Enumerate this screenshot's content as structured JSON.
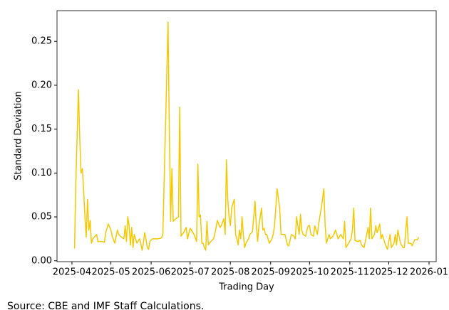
{
  "chart_data": {
    "type": "line",
    "x_label": "Trading Day",
    "y_label": "Standard Deviation",
    "source": "Source: CBE and IMF Staff Calculations.",
    "xlim": [
      78.5,
      370.5
    ],
    "xticks": [
      {
        "value": 90,
        "label": "2025-04"
      },
      {
        "value": 120,
        "label": "2025-05"
      },
      {
        "value": 151,
        "label": "2025-06"
      },
      {
        "value": 181,
        "label": "2025-07"
      },
      {
        "value": 212,
        "label": "2025-08"
      },
      {
        "value": 243,
        "label": "2025-09"
      },
      {
        "value": 273,
        "label": "2025-10"
      },
      {
        "value": 304,
        "label": "2025-11"
      },
      {
        "value": 334,
        "label": "2025-12"
      },
      {
        "value": 365,
        "label": "2026-01"
      }
    ],
    "ylim": [
      -0.001,
      0.285
    ],
    "yticks": [
      {
        "value": 0,
        "label": "0.00"
      },
      0.05,
      {
        "value": 0.1,
        "label": "0.10"
      },
      0.15,
      {
        "value": 0.2,
        "label": "0.20"
      },
      0.25
    ],
    "series": [
      {
        "color": "#f5c800",
        "x": [
          92,
          93,
          95,
          96,
          97,
          98,
          99,
          100,
          101,
          102,
          103,
          104,
          105,
          106,
          109,
          110,
          113,
          115,
          116,
          118,
          120,
          121,
          123,
          125,
          126,
          128,
          130,
          131,
          132,
          133,
          134,
          135,
          136,
          137,
          138,
          139,
          140,
          142,
          143,
          144,
          145,
          146,
          147,
          148,
          149,
          150,
          152,
          154,
          156,
          159,
          160,
          162,
          164,
          165,
          166,
          167,
          168,
          170,
          172,
          173,
          174,
          176,
          178,
          179,
          181,
          182,
          184,
          186,
          187,
          188,
          189,
          190,
          191,
          192,
          193,
          194,
          195,
          197,
          199,
          200,
          202,
          204,
          205,
          207,
          208,
          209,
          210,
          211,
          212,
          213,
          215,
          216,
          217,
          218,
          219,
          220,
          221,
          222,
          223,
          224,
          226,
          227,
          229,
          231,
          232,
          233,
          234,
          236,
          237,
          238,
          239,
          240,
          242,
          244,
          245,
          246,
          248,
          250,
          251,
          252,
          254,
          256,
          257,
          259,
          261,
          262,
          263,
          265,
          266,
          267,
          268,
          270,
          271,
          272,
          273,
          274,
          276,
          277,
          279,
          280,
          282,
          284,
          285,
          286,
          288,
          289,
          291,
          293,
          294,
          295,
          297,
          299,
          300,
          301,
          303,
          305,
          306,
          307,
          308,
          310,
          312,
          313,
          315,
          317,
          318,
          319,
          320,
          321,
          323,
          324,
          325,
          327,
          328,
          329,
          331,
          333,
          334,
          335,
          336,
          338,
          339,
          340,
          341,
          343,
          345,
          346,
          348,
          349,
          351,
          352,
          354,
          356,
          357
        ],
        "values": [
          0.014,
          0.09,
          0.195,
          0.14,
          0.1,
          0.105,
          0.08,
          0.05,
          0.027,
          0.07,
          0.035,
          0.046,
          0.02,
          0.025,
          0.03,
          0.022,
          0.022,
          0.021,
          0.032,
          0.042,
          0.035,
          0.028,
          0.02,
          0.035,
          0.03,
          0.027,
          0.025,
          0.04,
          0.022,
          0.05,
          0.04,
          0.018,
          0.038,
          0.015,
          0.03,
          0.025,
          0.02,
          0.025,
          0.02,
          0.012,
          0.02,
          0.032,
          0.025,
          0.015,
          0.013,
          0.022,
          0.025,
          0.025,
          0.025,
          0.026,
          0.03,
          0.15,
          0.272,
          0.15,
          0.045,
          0.105,
          0.045,
          0.048,
          0.05,
          0.175,
          0.028,
          0.032,
          0.038,
          0.025,
          0.037,
          0.035,
          0.03,
          0.022,
          0.11,
          0.05,
          0.052,
          0.02,
          0.02,
          0.015,
          0.012,
          0.045,
          0.018,
          0.022,
          0.025,
          0.03,
          0.046,
          0.038,
          0.04,
          0.048,
          0.03,
          0.115,
          0.07,
          0.05,
          0.04,
          0.06,
          0.07,
          0.03,
          0.025,
          0.018,
          0.035,
          0.025,
          0.05,
          0.03,
          0.015,
          0.02,
          0.025,
          0.03,
          0.033,
          0.068,
          0.04,
          0.022,
          0.04,
          0.06,
          0.035,
          0.037,
          0.03,
          0.03,
          0.02,
          0.025,
          0.03,
          0.04,
          0.082,
          0.06,
          0.03,
          0.03,
          0.03,
          0.018,
          0.017,
          0.03,
          0.028,
          0.025,
          0.05,
          0.03,
          0.053,
          0.035,
          0.03,
          0.028,
          0.035,
          0.04,
          0.04,
          0.03,
          0.028,
          0.04,
          0.03,
          0.042,
          0.06,
          0.082,
          0.04,
          0.02,
          0.03,
          0.025,
          0.028,
          0.035,
          0.03,
          0.025,
          0.03,
          0.025,
          0.045,
          0.015,
          0.02,
          0.025,
          0.035,
          0.06,
          0.023,
          0.022,
          0.023,
          0.018,
          0.015,
          0.03,
          0.038,
          0.025,
          0.06,
          0.025,
          0.03,
          0.04,
          0.032,
          0.042,
          0.025,
          0.03,
          0.02,
          0.013,
          0.022,
          0.03,
          0.015,
          0.02,
          0.03,
          0.018,
          0.035,
          0.02,
          0.015,
          0.015,
          0.05,
          0.02,
          0.02,
          0.017,
          0.024,
          0.024,
          0.027
        ]
      }
    ]
  }
}
